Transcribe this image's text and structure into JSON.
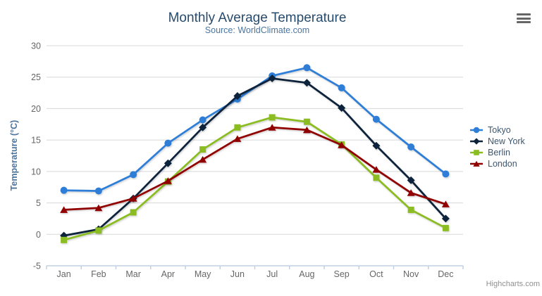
{
  "chart_data": {
    "type": "line",
    "title": "Monthly Average Temperature",
    "subtitle": "Source: WorldClimate.com",
    "categories": [
      "Jan",
      "Feb",
      "Mar",
      "Apr",
      "May",
      "Jun",
      "Jul",
      "Aug",
      "Sep",
      "Oct",
      "Nov",
      "Dec"
    ],
    "series": [
      {
        "name": "Tokyo",
        "color": "#2f7ed8",
        "marker": "circle",
        "values": [
          7.0,
          6.9,
          9.5,
          14.5,
          18.2,
          21.5,
          25.2,
          26.5,
          23.3,
          18.3,
          13.9,
          9.6
        ]
      },
      {
        "name": "New York",
        "color": "#0d233a",
        "marker": "diamond",
        "values": [
          -0.2,
          0.8,
          5.7,
          11.3,
          17.0,
          22.0,
          24.8,
          24.1,
          20.1,
          14.1,
          8.6,
          2.5
        ]
      },
      {
        "name": "Berlin",
        "color": "#8bbc21",
        "marker": "square",
        "values": [
          -0.9,
          0.6,
          3.5,
          8.4,
          13.5,
          17.0,
          18.6,
          17.9,
          14.3,
          9.0,
          3.9,
          1.0
        ]
      },
      {
        "name": "London",
        "color": "#910000",
        "marker": "triangle",
        "values": [
          3.9,
          4.2,
          5.7,
          8.5,
          11.9,
          15.2,
          17.0,
          16.6,
          14.2,
          10.3,
          6.6,
          4.8
        ]
      }
    ],
    "xlabel": "",
    "ylabel": "Temperature (°C)",
    "ylim": [
      -5,
      30
    ],
    "yticks": [
      -5,
      0,
      5,
      10,
      15,
      20,
      25,
      30
    ],
    "grid": "horizontal",
    "legend_position": "right-middle-vertical"
  },
  "credits": "Highcharts.com",
  "export_menu": {
    "icon": "hamburger"
  },
  "colors": {
    "grid": "#d8d8d8",
    "axis_line": "#c0d0e0",
    "tick": "#c0d0e0",
    "label": "#666666",
    "title": "#274b6d",
    "subtitle": "#4d759e",
    "axis_title": "#4d759e",
    "legend_text": "#3e576f",
    "credits": "#909090",
    "export_icon": "#666666"
  }
}
